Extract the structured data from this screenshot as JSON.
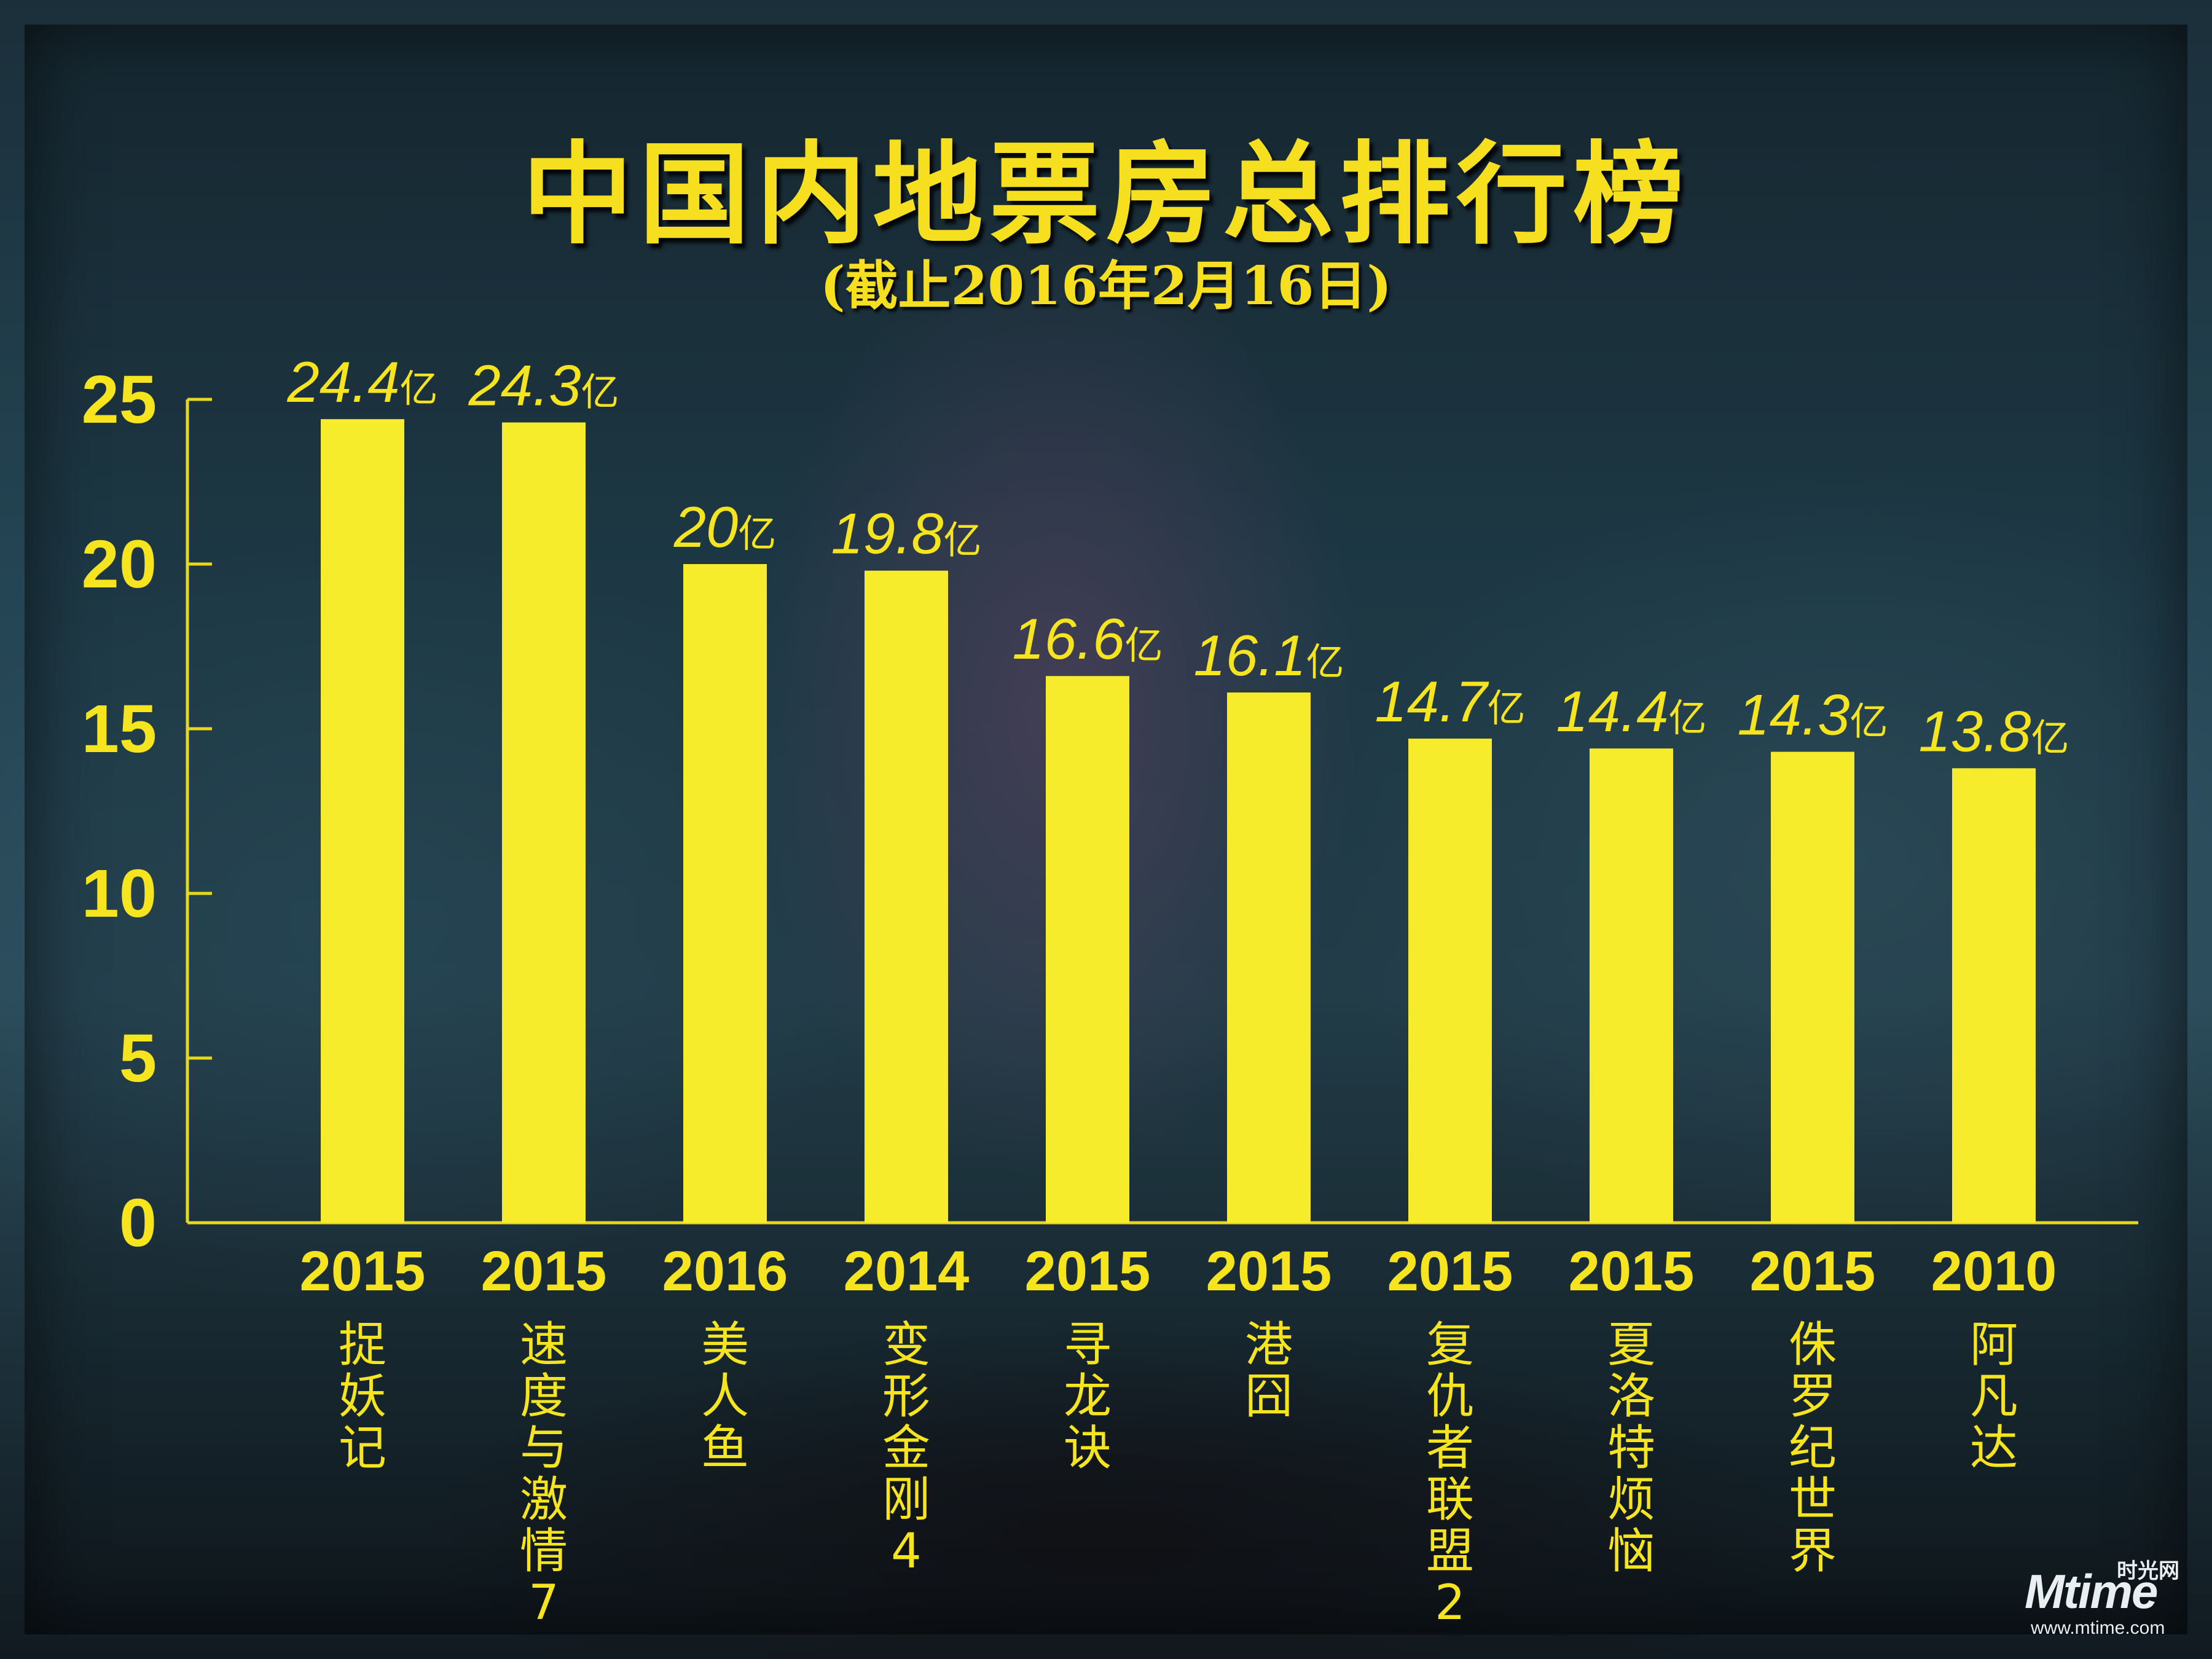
{
  "header": {
    "title": "中国内地票房总排行榜",
    "subtitle": "(截止2016年2月16日)"
  },
  "watermark": {
    "logo_text": "Mtime",
    "cn_text": "时光网",
    "url": "www.mtime.com"
  },
  "colors": {
    "bar": "#f6ec2b",
    "text": "#f6e41e",
    "axis": "#e8d81a"
  },
  "chart_data": {
    "type": "bar",
    "title": "中国内地票房总排行榜",
    "subtitle": "(截止2016年2月16日)",
    "xlabel": "",
    "ylabel": "",
    "ylim": [
      0,
      25
    ],
    "yticks": [
      "0",
      "5",
      "10",
      "15",
      "20",
      "25"
    ],
    "unit": "亿",
    "grid": false,
    "categories": [
      {
        "year": "2015",
        "name": "捉妖记"
      },
      {
        "year": "2015",
        "name": "速度与激情7"
      },
      {
        "year": "2016",
        "name": "美人鱼"
      },
      {
        "year": "2014",
        "name": "变形金刚4"
      },
      {
        "year": "2015",
        "name": "寻龙诀"
      },
      {
        "year": "2015",
        "name": "港囧"
      },
      {
        "year": "2015",
        "name": "复仇者联盟2"
      },
      {
        "year": "2015",
        "name": "夏洛特烦恼"
      },
      {
        "year": "2015",
        "name": "侏罗纪世界"
      },
      {
        "year": "2010",
        "name": "阿凡达"
      }
    ],
    "values": [
      24.4,
      24.3,
      20,
      19.8,
      16.6,
      16.1,
      14.7,
      14.4,
      14.3,
      13.8
    ],
    "value_labels": [
      "24.4",
      "24.3",
      "20",
      "19.8",
      "16.6",
      "16.1",
      "14.7",
      "14.4",
      "14.3",
      "13.8"
    ]
  }
}
